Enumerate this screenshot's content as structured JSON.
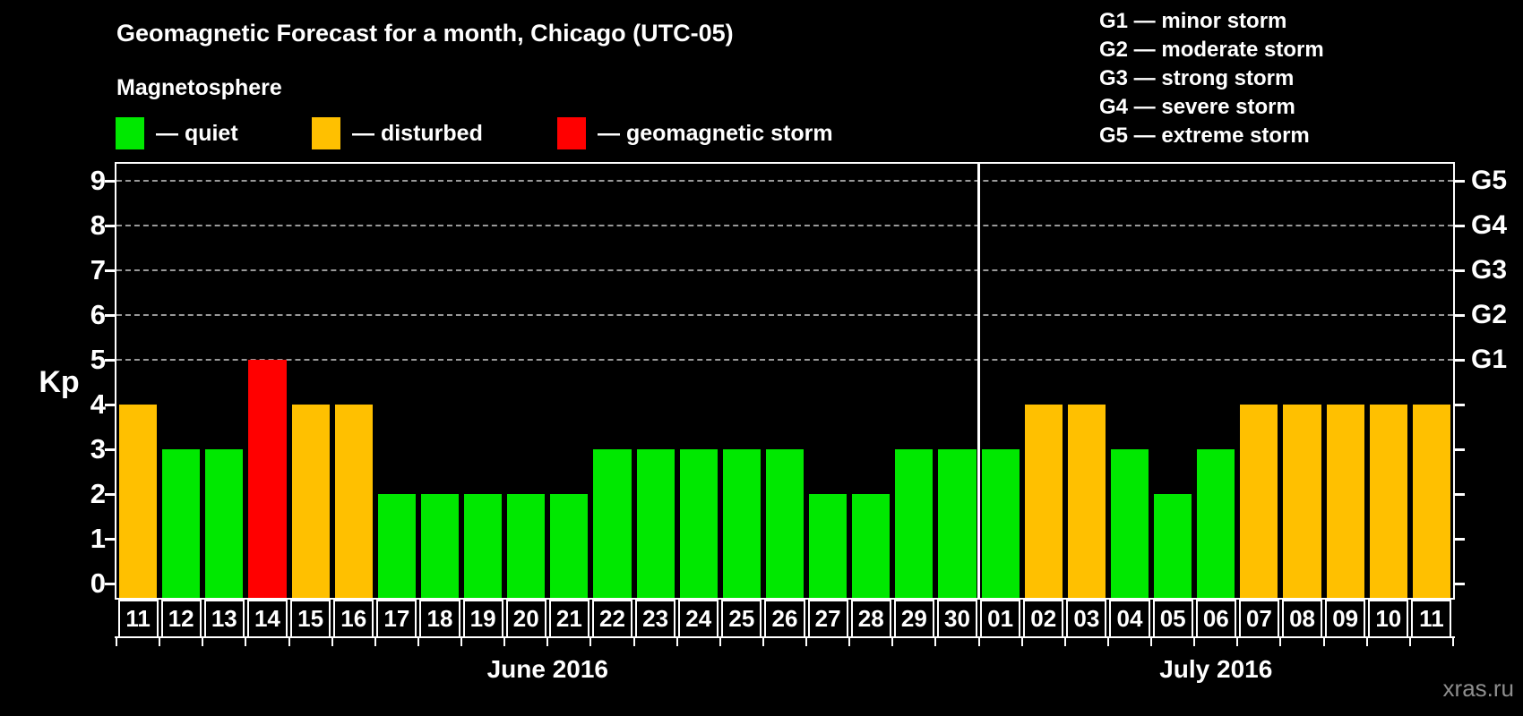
{
  "watermark": "xras.ru",
  "legend": {
    "heading": "Magnetosphere",
    "items": [
      {
        "name": "quiet",
        "label": "— quiet",
        "color": "#00e800"
      },
      {
        "name": "disturbed",
        "label": "— disturbed",
        "color": "#ffc000"
      },
      {
        "name": "storm",
        "label": "— geomagnetic storm",
        "color": "#ff0000"
      }
    ]
  },
  "storm_legend": [
    "G1 — minor storm",
    "G2 — moderate storm",
    "G3 — strong storm",
    "G4 — severe storm",
    "G5 — extreme storm"
  ],
  "chart_data": {
    "type": "bar",
    "title": "Geomagnetic Forecast for a month, Chicago (UTC-05)",
    "ylabel": "Kp",
    "ylim": [
      0,
      9.4
    ],
    "yticks": [
      0,
      1,
      2,
      3,
      4,
      5,
      6,
      7,
      8,
      9
    ],
    "gridlines_at": [
      5,
      6,
      7,
      8,
      9
    ],
    "grid_color": "#999999",
    "axis_color": "#ffffff",
    "right_axis_labels": [
      {
        "level": 5,
        "label": "G1"
      },
      {
        "level": 6,
        "label": "G2"
      },
      {
        "level": 7,
        "label": "G3"
      },
      {
        "level": 8,
        "label": "G4"
      },
      {
        "level": 9,
        "label": "G5"
      }
    ],
    "months": [
      {
        "label": "June 2016",
        "days": 20
      },
      {
        "label": "July 2016",
        "days": 11
      }
    ],
    "status_colors": {
      "quiet": "#00e800",
      "disturbed": "#ffc000",
      "storm": "#ff0000"
    },
    "bars": [
      {
        "day": "11",
        "kp": 4,
        "status": "disturbed"
      },
      {
        "day": "12",
        "kp": 3,
        "status": "quiet"
      },
      {
        "day": "13",
        "kp": 3,
        "status": "quiet"
      },
      {
        "day": "14",
        "kp": 5,
        "status": "storm"
      },
      {
        "day": "15",
        "kp": 4,
        "status": "disturbed"
      },
      {
        "day": "16",
        "kp": 4,
        "status": "disturbed"
      },
      {
        "day": "17",
        "kp": 2,
        "status": "quiet"
      },
      {
        "day": "18",
        "kp": 2,
        "status": "quiet"
      },
      {
        "day": "19",
        "kp": 2,
        "status": "quiet"
      },
      {
        "day": "20",
        "kp": 2,
        "status": "quiet"
      },
      {
        "day": "21",
        "kp": 2,
        "status": "quiet"
      },
      {
        "day": "22",
        "kp": 3,
        "status": "quiet"
      },
      {
        "day": "23",
        "kp": 3,
        "status": "quiet"
      },
      {
        "day": "24",
        "kp": 3,
        "status": "quiet"
      },
      {
        "day": "25",
        "kp": 3,
        "status": "quiet"
      },
      {
        "day": "26",
        "kp": 3,
        "status": "quiet"
      },
      {
        "day": "27",
        "kp": 2,
        "status": "quiet"
      },
      {
        "day": "28",
        "kp": 2,
        "status": "quiet"
      },
      {
        "day": "29",
        "kp": 3,
        "status": "quiet"
      },
      {
        "day": "30",
        "kp": 3,
        "status": "quiet"
      },
      {
        "day": "01",
        "kp": 3,
        "status": "quiet"
      },
      {
        "day": "02",
        "kp": 4,
        "status": "disturbed"
      },
      {
        "day": "03",
        "kp": 4,
        "status": "disturbed"
      },
      {
        "day": "04",
        "kp": 3,
        "status": "quiet"
      },
      {
        "day": "05",
        "kp": 2,
        "status": "quiet"
      },
      {
        "day": "06",
        "kp": 3,
        "status": "quiet"
      },
      {
        "day": "07",
        "kp": 4,
        "status": "disturbed"
      },
      {
        "day": "08",
        "kp": 4,
        "status": "disturbed"
      },
      {
        "day": "09",
        "kp": 4,
        "status": "disturbed"
      },
      {
        "day": "10",
        "kp": 4,
        "status": "disturbed"
      },
      {
        "day": "11",
        "kp": 4,
        "status": "disturbed"
      }
    ]
  }
}
